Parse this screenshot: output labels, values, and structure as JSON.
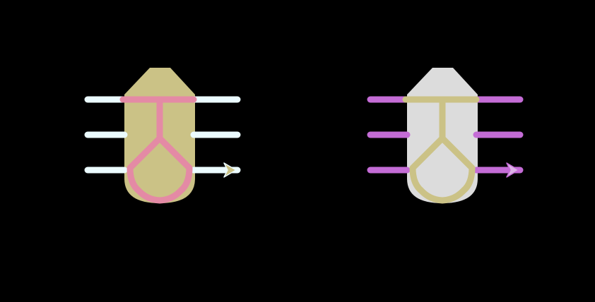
{
  "background_color": "#000000",
  "icons": [
    {
      "id": "left",
      "body_color": "#cbc286",
      "frame_color": "#e48aa5",
      "lead_color": "#ebfbff",
      "arrow_fill": "#cbc286",
      "arrow_stroke": "#ebfbff"
    },
    {
      "id": "right",
      "body_color": "#dcdcdc",
      "frame_color": "#cbc286",
      "lead_color": "#c46cd6",
      "arrow_fill": "#dcb3e6",
      "arrow_stroke": "#c46cd6"
    }
  ]
}
